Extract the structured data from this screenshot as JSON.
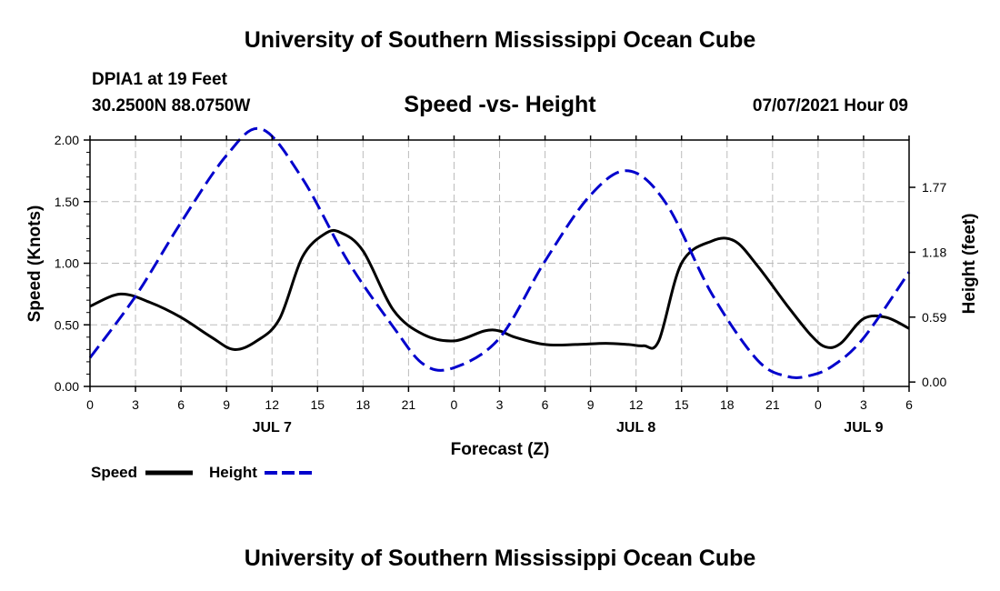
{
  "header": {
    "title": "University of Southern Mississippi Ocean Cube",
    "station": "DPIA1 at 19 Feet",
    "coords": "30.2500N  88.0750W",
    "subtitle": "Speed -vs- Height",
    "datetime": "07/07/2021 Hour 09"
  },
  "footer": {
    "title": "University of Southern Mississippi Ocean Cube"
  },
  "chart_data": {
    "type": "line",
    "title": "Speed -vs- Height",
    "xlabel": "Forecast (Z)",
    "ylabel": "Speed (Knots)",
    "y2label": "Height (feet)",
    "xlim": [
      0,
      54
    ],
    "ylim": [
      0,
      2.0
    ],
    "y2lim": [
      -0.04,
      2.2
    ],
    "x_ticks": [
      0,
      3,
      6,
      9,
      12,
      15,
      18,
      21,
      24,
      27,
      30,
      33,
      36,
      39,
      42,
      45,
      48,
      51,
      54
    ],
    "x_tick_labels": [
      "0",
      "3",
      "6",
      "9",
      "12",
      "15",
      "18",
      "21",
      "0",
      "3",
      "6",
      "9",
      "12",
      "15",
      "18",
      "21",
      "0",
      "3",
      "6"
    ],
    "date_labels": [
      {
        "x": 12,
        "label": "JUL 7"
      },
      {
        "x": 36,
        "label": "JUL 8"
      },
      {
        "x": 51,
        "label": "JUL 9"
      }
    ],
    "y_ticks": [
      0.0,
      0.5,
      1.0,
      1.5,
      2.0
    ],
    "y_tick_labels": [
      "0.00",
      "0.50",
      "1.00",
      "1.50",
      "2.00"
    ],
    "y2_ticks": [
      0.0,
      0.59,
      1.18,
      1.77
    ],
    "y2_tick_labels": [
      "0.00",
      "0.59",
      "1.18",
      "1.77"
    ],
    "grid": true,
    "legend": [
      "Speed",
      "Height"
    ],
    "series": [
      {
        "name": "Speed",
        "color": "#000000",
        "style": "solid",
        "axis": "left",
        "x": [
          0,
          2,
          4,
          6,
          8,
          9.5,
          11,
          12.5,
          14,
          15.5,
          16.5,
          18,
          20,
          22,
          24,
          26,
          27,
          28,
          30,
          32,
          34,
          35.5,
          36.5,
          37.5,
          39,
          41,
          42.5,
          44,
          46,
          47.5,
          48.5,
          49.5,
          51,
          52.5,
          54
        ],
        "values": [
          0.65,
          0.75,
          0.68,
          0.56,
          0.4,
          0.3,
          0.37,
          0.55,
          1.05,
          1.24,
          1.25,
          1.1,
          0.62,
          0.42,
          0.37,
          0.45,
          0.45,
          0.4,
          0.34,
          0.34,
          0.35,
          0.34,
          0.33,
          0.37,
          1.0,
          1.18,
          1.18,
          0.98,
          0.65,
          0.42,
          0.32,
          0.35,
          0.55,
          0.56,
          0.47
        ]
      },
      {
        "name": "Height",
        "color": "#0000cc",
        "style": "dashed",
        "axis": "right",
        "x": [
          0,
          3,
          6,
          9,
          11.3,
          14,
          17,
          20,
          22,
          24,
          27,
          30,
          33,
          35.5,
          38,
          41,
          44,
          46,
          47.5,
          49,
          51,
          54
        ],
        "values": [
          0.22,
          0.78,
          1.45,
          2.06,
          2.3,
          1.85,
          1.1,
          0.5,
          0.16,
          0.13,
          0.4,
          1.1,
          1.7,
          1.92,
          1.62,
          0.8,
          0.2,
          0.05,
          0.06,
          0.15,
          0.4,
          1.0
        ]
      }
    ]
  }
}
